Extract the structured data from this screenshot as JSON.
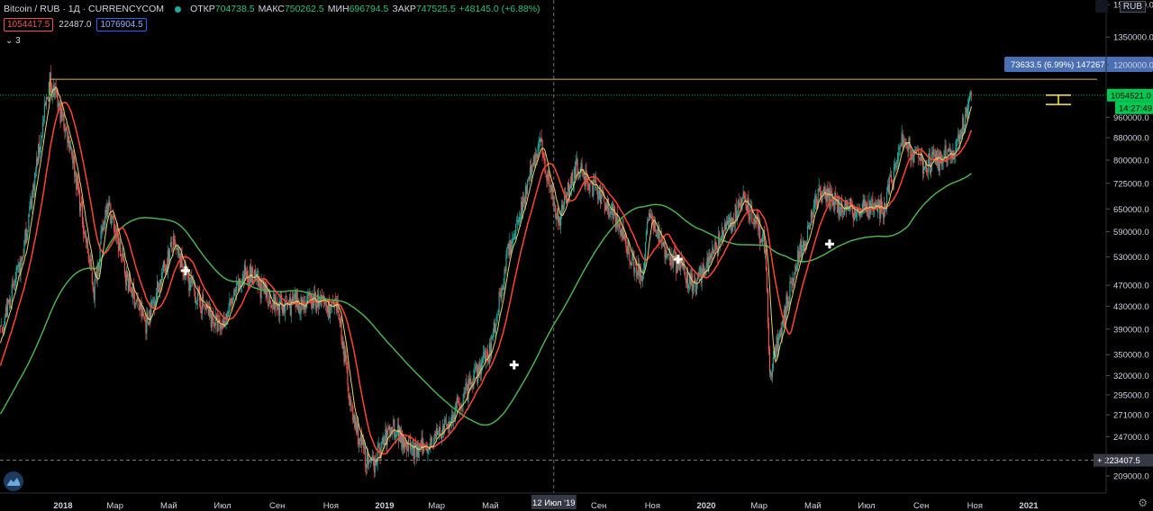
{
  "header": {
    "symbol": "Bitcoin / RUB · 1Д · CURRENCYCOM",
    "open_label": "ОТКР",
    "open": "704738.5",
    "high_label": "МАКС",
    "high": "750262.5",
    "low_label": "МИН",
    "low": "696794.5",
    "close_label": "ЗАКР",
    "close": "747525.5",
    "change": "+48145.0 (+6.88%)"
  },
  "badges": {
    "sell": "1054417.5",
    "spread": "22487.0",
    "buy": "1076904.5"
  },
  "indicators_toggle": "3",
  "currency": "RUB",
  "colors": {
    "background": "#000000",
    "up": "#26a69a",
    "down": "#ef5350",
    "ma_fast": "#e6d16b",
    "ma_mid": "#ff4433",
    "ma_slow": "#4caf50",
    "level_line": "#e0b04a",
    "price_tag": "#00c853",
    "measure_tag": "#4a6fb5"
  },
  "chart_data": {
    "type": "candlestick",
    "y_scale": "log",
    "y_ticks": [
      "1550000.0",
      "1350000.0",
      "1200000.0",
      "960000.0",
      "880000.0",
      "800000.0",
      "725000.0",
      "650000.0",
      "590000.0",
      "530000.0",
      "470000.0",
      "430000.0",
      "390000.0",
      "350000.0",
      "320000.0",
      "295000.0",
      "271000.0",
      "247000.0",
      "209000.0"
    ],
    "x_ticks": [
      "2018",
      "Мар",
      "Май",
      "Июл",
      "Сен",
      "Ноя",
      "2019",
      "Мар",
      "Май",
      "Сен",
      "Ноя",
      "2020",
      "Мар",
      "Май",
      "Июл",
      "Сен",
      "Ноя",
      "2021"
    ],
    "crosshair_x_label": "12 Июл '19",
    "crosshair_y_label": "223407.5",
    "last_price_label": "1054521.0",
    "countdown_label": "14:27:49",
    "measure_label": "73633.5 (6.99%) 147267",
    "resistance_level": 1128000,
    "price_path_anchors": [
      [
        "2017-09-01",
        180000
      ],
      [
        "2017-10-01",
        300000
      ],
      [
        "2017-11-15",
        520000
      ],
      [
        "2017-12-17",
        1128000
      ],
      [
        "2018-01-10",
        850000
      ],
      [
        "2018-02-05",
        460000
      ],
      [
        "2018-02-20",
        680000
      ],
      [
        "2018-03-15",
        480000
      ],
      [
        "2018-04-05",
        400000
      ],
      [
        "2018-05-05",
        560000
      ],
      [
        "2018-06-01",
        450000
      ],
      [
        "2018-06-28",
        390000
      ],
      [
        "2018-07-28",
        500000
      ],
      [
        "2018-09-01",
        430000
      ],
      [
        "2018-10-15",
        440000
      ],
      [
        "2018-11-10",
        420000
      ],
      [
        "2018-11-25",
        270000
      ],
      [
        "2018-12-15",
        215000
      ],
      [
        "2019-01-10",
        260000
      ],
      [
        "2019-02-05",
        230000
      ],
      [
        "2019-03-10",
        255000
      ],
      [
        "2019-04-05",
        300000
      ],
      [
        "2019-05-01",
        360000
      ],
      [
        "2019-05-20",
        530000
      ],
      [
        "2019-06-26",
        870000
      ],
      [
        "2019-07-17",
        620000
      ],
      [
        "2019-08-06",
        780000
      ],
      [
        "2019-09-15",
        650000
      ],
      [
        "2019-10-20",
        480000
      ],
      [
        "2019-10-27",
        640000
      ],
      [
        "2019-11-15",
        550000
      ],
      [
        "2019-12-18",
        470000
      ],
      [
        "2020-01-15",
        560000
      ],
      [
        "2020-02-13",
        680000
      ],
      [
        "2020-03-08",
        560000
      ],
      [
        "2020-03-13",
        320000
      ],
      [
        "2020-04-10",
        500000
      ],
      [
        "2020-05-08",
        690000
      ],
      [
        "2020-06-10",
        650000
      ],
      [
        "2020-07-20",
        650000
      ],
      [
        "2020-08-10",
        870000
      ],
      [
        "2020-09-05",
        780000
      ],
      [
        "2020-10-10",
        830000
      ],
      [
        "2020-10-28",
        1054521
      ]
    ]
  }
}
